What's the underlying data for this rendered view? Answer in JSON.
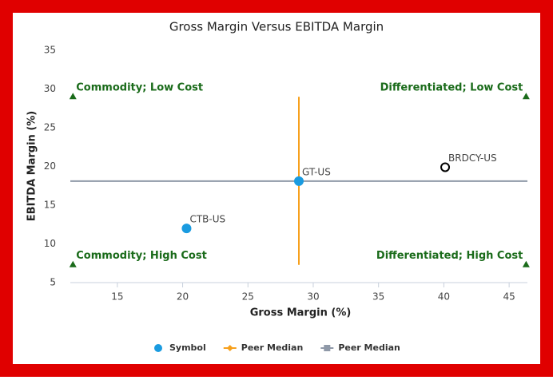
{
  "chart_data": {
    "type": "scatter",
    "title": "Gross Margin Versus EBITDA Margin",
    "xlabel": "Gross Margin (%)",
    "ylabel": "EBITDA Margin (%)",
    "xlim": [
      11.4,
      46.4
    ],
    "ylim": [
      5,
      35
    ],
    "xticks": [
      15,
      20,
      25,
      30,
      35,
      40,
      45
    ],
    "yticks": [
      5,
      10,
      15,
      20,
      25,
      30,
      35
    ],
    "series": [
      {
        "name": "Symbol",
        "color": "#1a9be0",
        "marker": "circle",
        "x": [
          20.3,
          28.9,
          40.1
        ],
        "values": [
          12.0,
          18.1,
          19.9
        ],
        "point_labels": [
          "CTB-US",
          "GT-US",
          "BRDCY-US"
        ],
        "marker_fill": [
          "#1a9be0",
          "#1a9be0",
          "#ffffff"
        ],
        "marker_stroke": [
          "#1a9be0",
          "#1a9be0",
          "#000000"
        ]
      },
      {
        "name": "Peer Median",
        "color": "#f7a01c",
        "marker": "diamond",
        "x": [
          28.9,
          28.9
        ],
        "values": [
          7.3,
          29.0
        ]
      },
      {
        "name": "Peer Median",
        "color": "#8f99a8",
        "marker": "square",
        "x": [
          11.4,
          46.4
        ],
        "values": [
          18.1,
          18.1
        ]
      }
    ],
    "quadrants": {
      "color": "#1a6b1a",
      "items": [
        {
          "text": "Commodity; Low Cost",
          "x": 11.6,
          "y": 29.0
        },
        {
          "text": "Differentiated; Low Cost",
          "x": 46.3,
          "y": 29.0
        },
        {
          "text": "Commodity; High Cost",
          "x": 11.6,
          "y": 7.3
        },
        {
          "text": "Differentiated; High Cost",
          "x": 46.3,
          "y": 7.3
        }
      ]
    }
  }
}
